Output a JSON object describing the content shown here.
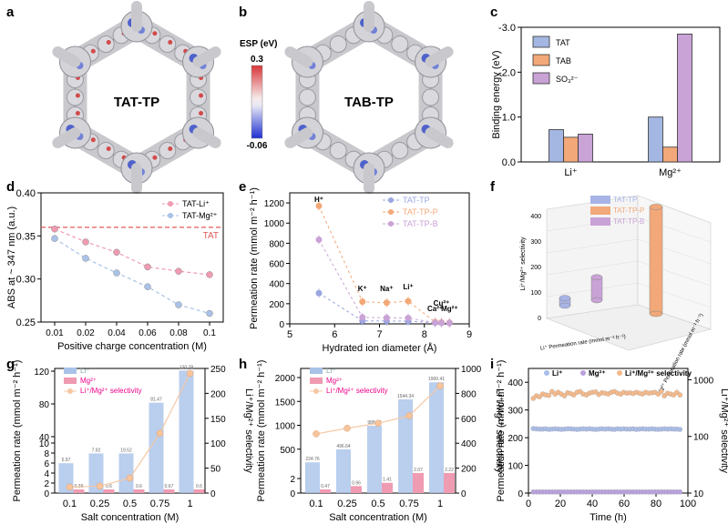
{
  "panel_letters": [
    "a",
    "b",
    "c",
    "d",
    "e",
    "f",
    "g",
    "h",
    "i"
  ],
  "panel_a": {
    "label": "TAT-TP"
  },
  "panel_b": {
    "label": "TAB-TP"
  },
  "esp": {
    "title": "ESP (eV)",
    "max": "0.3",
    "min": "-0.06"
  },
  "colors": {
    "blue": "#a4b6e2",
    "orange": "#f2a878",
    "purple": "#c9a2d6",
    "pink": "#ef9bb2",
    "red": "#e05a5a",
    "lightblue": "#a9c2e8",
    "navy": "#1a1a2e"
  },
  "chart_data": [
    {
      "id": "c",
      "type": "bar",
      "title": "",
      "xlabel": "",
      "ylabel": "Binding energy (eV)",
      "categories": [
        "Li⁺",
        "Mg²⁺"
      ],
      "series": [
        {
          "name": "TAT",
          "values": [
            -0.72,
            -1.0
          ]
        },
        {
          "name": "TAB",
          "values": [
            -0.55,
            -0.33
          ]
        },
        {
          "name": "SO₃²⁻",
          "values": [
            -0.62,
            -2.85
          ]
        }
      ],
      "ylim": [
        0.0,
        -3.0
      ],
      "yticks": [
        "0.0",
        "-1.0",
        "-2.0",
        "-3.0"
      ]
    },
    {
      "id": "d",
      "type": "line",
      "xlabel": "Positive charge concentration (M)",
      "ylabel": "ABS at ~ 347 nm (a.u.)",
      "x": [
        "0.01",
        "0.02",
        "0.04",
        "0.06",
        "0.08",
        "0.1"
      ],
      "series": [
        {
          "name": "TAT-Li⁺",
          "values": [
            0.358,
            0.343,
            0.331,
            0.314,
            0.309,
            0.305
          ]
        },
        {
          "name": "TAT-Mg²⁺",
          "values": [
            0.347,
            0.324,
            0.307,
            0.291,
            0.27,
            0.26
          ]
        }
      ],
      "reference": {
        "name": "TAT",
        "value": 0.36
      },
      "ylim": [
        0.25,
        0.4
      ],
      "yticks": [
        "0.25",
        "0.30",
        "0.35",
        "0.40"
      ]
    },
    {
      "id": "e",
      "type": "scatter",
      "xlabel": "Hydrated ion diameter (Å)",
      "ylabel": "Permeation rate (mmol m⁻² h⁻¹)",
      "xlim": [
        5,
        9
      ],
      "ylim": [
        0,
        1300
      ],
      "xticks": [
        "5",
        "6",
        "7",
        "8",
        "9"
      ],
      "yticks": [
        "0",
        "200",
        "400",
        "600",
        "800",
        "1000",
        "1200"
      ],
      "ions": [
        {
          "label": "H⁺",
          "x": 5.65
        },
        {
          "label": "K⁺",
          "x": 6.62
        },
        {
          "label": "Na⁺",
          "x": 7.16
        },
        {
          "label": "Li⁺",
          "x": 7.64
        },
        {
          "label": "Ca²⁺",
          "x": 8.24
        },
        {
          "label": "Cu²⁺",
          "x": 8.38
        },
        {
          "label": "Mg²⁺",
          "x": 8.56
        }
      ],
      "series": [
        {
          "name": "TAT-TP",
          "values": [
            305,
            30,
            28,
            27,
            12,
            10,
            8
          ]
        },
        {
          "name": "TAT-TP-P",
          "values": [
            1170,
            220,
            210,
            225,
            18,
            15,
            12
          ]
        },
        {
          "name": "TAT-TP-B",
          "values": [
            835,
            65,
            60,
            58,
            12,
            10,
            8
          ]
        }
      ]
    },
    {
      "id": "f",
      "type": "bar3d",
      "zlabel": "Li⁺/Mg²⁺ selectivity",
      "xlabel": "Li⁺ Permeation rate (mmol m⁻² h⁻¹)",
      "ylabel": "Mg²⁺ Permeation rate (mmol m⁻² h⁻¹)",
      "zticks": [
        "0",
        "100",
        "200",
        "300",
        "400"
      ],
      "xticks": [
        "0",
        "50",
        "100",
        "150",
        "200",
        "250"
      ],
      "yticks": [
        "0",
        "1",
        "2",
        "3",
        "4",
        "5",
        "6"
      ],
      "series": [
        {
          "name": "TAT-TP",
          "selectivity": 30
        },
        {
          "name": "TAT-TP-P",
          "selectivity": 420
        },
        {
          "name": "TAT-TP-B",
          "selectivity": 90
        }
      ]
    },
    {
      "id": "g",
      "type": "bar",
      "xlabel": "Salt concentration (M)",
      "ylabel": "Permeation rate (mmol m⁻² h⁻¹)",
      "y2label": "Li⁺/Mg²⁺ selectivity",
      "categories": [
        "0.1",
        "0.25",
        "0.5",
        "0.75",
        "1"
      ],
      "series": [
        {
          "name": "Li⁺",
          "values": [
            5.97,
            7.92,
            19.52,
            81.47,
            120.78
          ],
          "labels": [
            "5.97",
            "7.92",
            "19.52",
            "81.47",
            "120.78"
          ]
        },
        {
          "name": "Mg²⁺",
          "values": [
            0.39,
            0.6,
            0.6,
            0.67,
            0.6
          ],
          "labels": [
            "0.39",
            "0.6",
            "0.6",
            "0.67",
            "0.6"
          ]
        },
        {
          "name": "Li⁺/Mg²⁺ selectivity",
          "values": [
            12,
            14,
            30,
            120,
            240
          ]
        }
      ],
      "ylim": [
        0,
        130
      ],
      "y2lim": [
        0,
        250
      ],
      "yticks": [
        "0",
        "2",
        "4",
        "6",
        "8",
        "10",
        "40",
        "80",
        "120"
      ],
      "y2ticks": [
        "0",
        "50",
        "100",
        "150",
        "200",
        "250"
      ]
    },
    {
      "id": "h",
      "type": "bar",
      "xlabel": "Salt concentration (M)",
      "ylabel": "Permeation rate (mmol m⁻² h⁻¹)",
      "y2label": "Li⁺/Mg²⁺ selectivity",
      "categories": [
        "0.1",
        "0.25",
        "0.5",
        "0.75",
        "1"
      ],
      "series": [
        {
          "name": "Li⁺",
          "values": [
            224.76,
            496.64,
            988.96,
            1544.34,
            1900.41
          ],
          "labels": [
            "224.76",
            "496.64",
            "988.96",
            "1544.34",
            "1900.41"
          ]
        },
        {
          "name": "Mg²⁺",
          "values": [
            0.47,
            0.96,
            1.41,
            2.07,
            2.22
          ],
          "labels": [
            "0.47",
            "0.96",
            "1.41",
            "2.07",
            "2.22"
          ]
        },
        {
          "name": "Li⁺/Mg²⁺ selectivity",
          "values": [
            475,
            520,
            560,
            620,
            860
          ]
        }
      ],
      "ylim": [
        0,
        2200
      ],
      "y2lim": [
        0,
        1000
      ],
      "yticks": [
        "0",
        "2",
        "500",
        "1000",
        "1500",
        "2000"
      ],
      "y2ticks": [
        "0",
        "200",
        "400",
        "600",
        "800",
        "1000"
      ]
    },
    {
      "id": "i",
      "type": "scatter",
      "xlabel": "Time (h)",
      "ylabel": "Permeation rate (mmol m⁻² h⁻¹)",
      "y2label": "Li⁺/Mg²⁺ selectivity",
      "xlim": [
        0,
        100
      ],
      "ylim": [
        0,
        450
      ],
      "xticks": [
        "0",
        "20",
        "40",
        "60",
        "80",
        "100"
      ],
      "yticks": [
        "0",
        "100",
        "200",
        "300",
        "400"
      ],
      "y2ticks": [
        "10",
        "100",
        "1000"
      ],
      "series": [
        {
          "name": "Li⁺",
          "values": [
            233,
            232,
            231,
            231,
            232,
            230,
            231,
            232,
            231,
            230,
            231,
            232,
            232,
            231,
            230,
            231,
            232,
            231,
            232,
            231,
            230,
            231,
            232,
            231,
            232,
            231,
            230,
            232,
            231,
            232,
            231,
            231,
            232,
            230,
            231,
            232,
            231,
            231,
            232,
            231,
            230,
            231,
            232,
            231,
            232,
            231,
            231,
            230
          ]
        },
        {
          "name": "Mg²⁺",
          "values": [
            4,
            4,
            4,
            4,
            4,
            4,
            4,
            4,
            4,
            4,
            4,
            4,
            4,
            4,
            4,
            4,
            4,
            4,
            4,
            4,
            4,
            4,
            4,
            4,
            4,
            4,
            4,
            4,
            4,
            4,
            4,
            4,
            4,
            4,
            4,
            4,
            4,
            4,
            4,
            4,
            4,
            4,
            4,
            4,
            4,
            4,
            4,
            4
          ]
        },
        {
          "name": "Li⁺/Mg²⁺ selectivity",
          "values": [
            470,
            520,
            500,
            560,
            540,
            530,
            620,
            560,
            600,
            560,
            520,
            590,
            570,
            540,
            600,
            620,
            560,
            540,
            580,
            600,
            610,
            550,
            590,
            580,
            560,
            600,
            620,
            580,
            560,
            600,
            580,
            590,
            570,
            600,
            580,
            560,
            600,
            580,
            590,
            600,
            560,
            620,
            520,
            580,
            560,
            540,
            600,
            540
          ]
        }
      ]
    }
  ]
}
